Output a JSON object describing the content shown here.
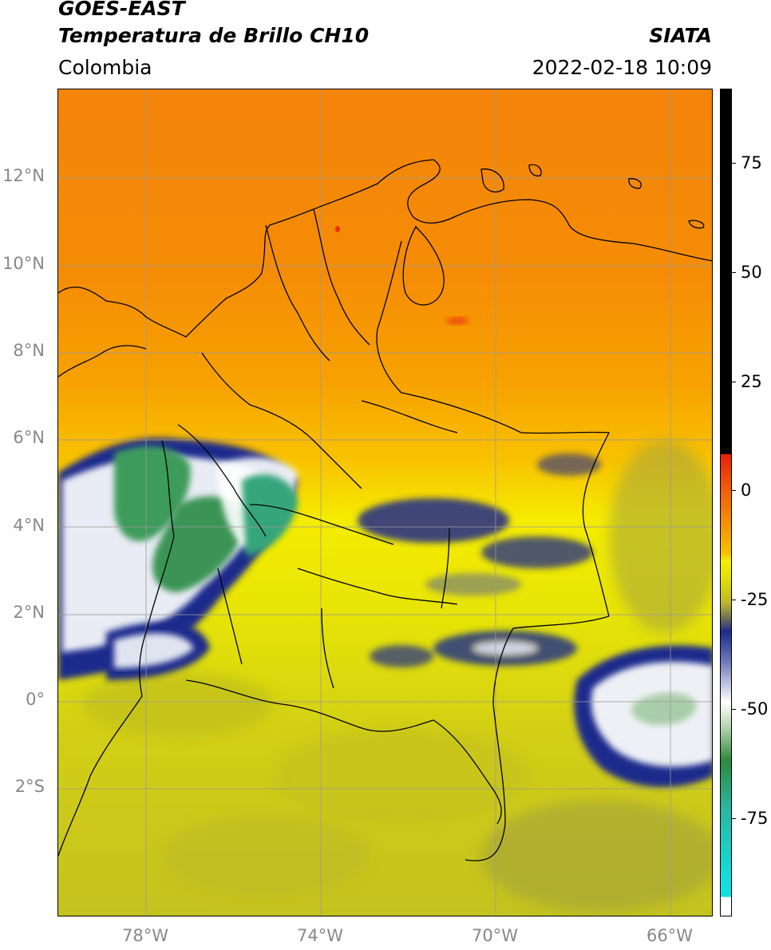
{
  "header": {
    "satellite": "GOES-EAST",
    "product": "Temperatura de Brillo CH10",
    "brand": "SIATA",
    "region": "Colombia",
    "timestamp": "2022-02-18 10:09"
  },
  "map": {
    "lat_labels": [
      "12°N",
      "10°N",
      "8°N",
      "6°N",
      "4°N",
      "2°N",
      "0°",
      "2°S"
    ],
    "lon_labels": [
      "78°W",
      "74°W",
      "70°W",
      "66°W"
    ],
    "colors": {
      "warm_north": "#f58a06",
      "warm_south": "#f7b400",
      "yellow": "#f2ef00",
      "olive": "#c9c61c",
      "deep_cloud_blue": "#1d2a8c",
      "cloud_white": "#eef0f5",
      "cloud_green": "#3a9a5a",
      "border": "#000000",
      "grid": "#9a9a9a"
    }
  },
  "colorbar": {
    "tick_labels": [
      "75",
      "50",
      "25",
      "0",
      "-25",
      "-50",
      "-75"
    ],
    "colors": {
      "black": "#000000",
      "red": "#e8200a",
      "orange": "#f58a06",
      "yellow": "#f5f000",
      "olive": "#bdb82b",
      "navy": "#1d2a8c",
      "white": "#ffffff",
      "green": "#2f8a3c",
      "teal": "#2ab8a3",
      "cyan": "#12e0e0"
    }
  }
}
